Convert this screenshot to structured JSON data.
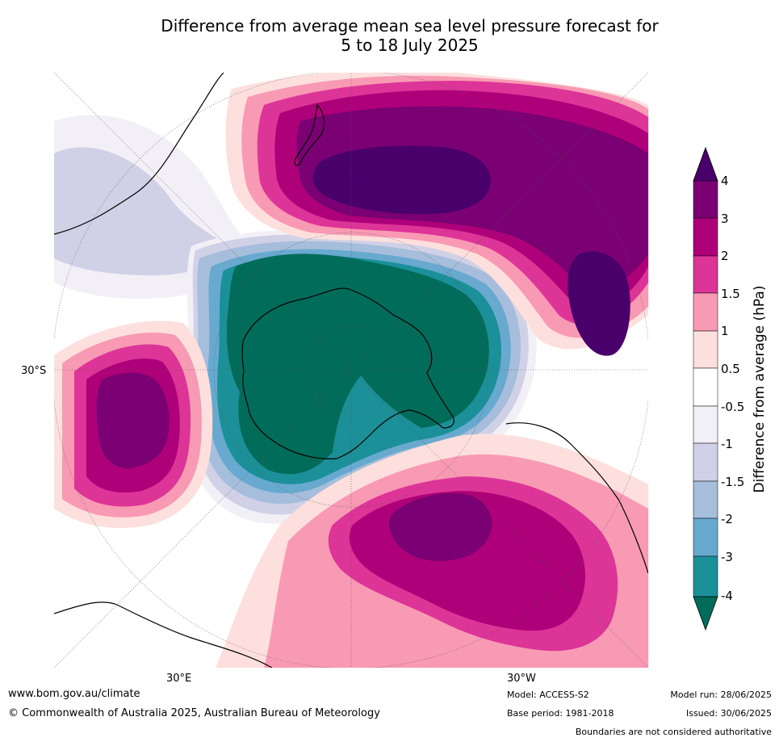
{
  "title": {
    "line1": "Difference from average mean sea level pressure forecast for",
    "line2": "5 to 18 July 2025"
  },
  "map": {
    "projection": "south-polar",
    "lat_label": "30°S",
    "lon_labels": {
      "east": "30°E",
      "west": "30°W"
    },
    "coastline_color": "#000000",
    "boundary_color": "#808080"
  },
  "colorbar": {
    "title": "Difference from average (hPa)",
    "labels": [
      "4",
      "3",
      "2",
      "1.5",
      "1",
      "0.5",
      "-0.5",
      "-1",
      "-1.5",
      "-2",
      "-3",
      "-4"
    ],
    "colors": {
      "above_4": "#4a006a",
      "3_to_4": "#7b0073",
      "2_to_3": "#ae0179",
      "1.5_to_2": "#dd3497",
      "1_to_1.5": "#f99ab5",
      "0.5_to_1": "#fde0dd",
      "-0.5_to_0.5": "#ffffff",
      "-1_to_-0.5": "#f2eff6",
      "-1.5_to_-1": "#d0d1e6",
      "-2_to_-1.5": "#a6bddb",
      "-3_to_-2": "#67a9cf",
      "-4_to_-3": "#1c9099",
      "below_-4": "#016c59"
    }
  },
  "footer": {
    "website": "www.bom.gov.au/climate",
    "copyright": "© Commonwealth of Australia 2025, Australian Bureau of Meteorology",
    "model": "Model: ACCESS-S2",
    "base_period": "Base period: 1981-2018",
    "model_run": "Model run: 28/06/2025",
    "issued": "Issued: 30/06/2025",
    "disclaimer": "Boundaries are not considered authoritative"
  }
}
